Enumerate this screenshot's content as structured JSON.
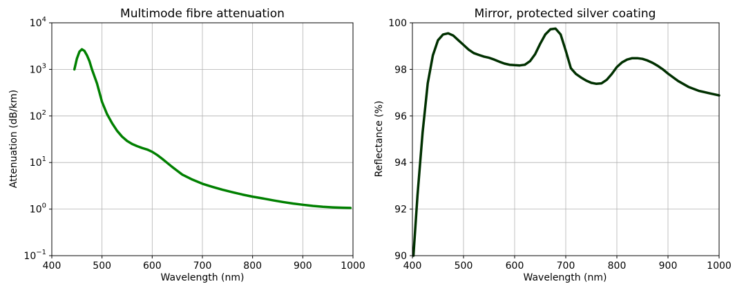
{
  "chart_data": [
    {
      "type": "line",
      "title": "Multimode fibre attenuation",
      "xlabel": "Wavelength (nm)",
      "ylabel": "Attenuation (dB/km)",
      "yscale": "log",
      "xlim": [
        400,
        1000
      ],
      "ylim": [
        0.1,
        10000
      ],
      "xticks": [
        "400",
        "500",
        "600",
        "700",
        "800",
        "900",
        "1000"
      ],
      "yticks": [
        {
          "base": "10",
          "exp": "−1",
          "value": 0.1
        },
        {
          "base": "10",
          "exp": "0",
          "value": 1
        },
        {
          "base": "10",
          "exp": "1",
          "value": 10
        },
        {
          "base": "10",
          "exp": "2",
          "value": 100
        },
        {
          "base": "10",
          "exp": "3",
          "value": 1000
        },
        {
          "base": "10",
          "exp": "4",
          "value": 10000
        }
      ],
      "grid": true,
      "series": [
        {
          "color": "#008000",
          "x": [
            445,
            450,
            455,
            460,
            465,
            470,
            475,
            480,
            490,
            500,
            510,
            520,
            530,
            540,
            550,
            560,
            570,
            580,
            590,
            600,
            610,
            620,
            640,
            660,
            680,
            700,
            720,
            740,
            760,
            780,
            800,
            820,
            840,
            860,
            880,
            900,
            920,
            940,
            960,
            980,
            995
          ],
          "y": [
            1000,
            1700,
            2400,
            2700,
            2500,
            2000,
            1500,
            1000,
            500,
            200,
            110,
            70,
            48,
            36,
            29,
            25,
            22.5,
            20.5,
            19,
            17,
            14.5,
            12,
            8,
            5.5,
            4.3,
            3.5,
            3.0,
            2.6,
            2.3,
            2.05,
            1.85,
            1.7,
            1.55,
            1.42,
            1.32,
            1.24,
            1.17,
            1.12,
            1.09,
            1.07,
            1.06
          ]
        }
      ]
    },
    {
      "type": "line",
      "title": "Mirror, protected silver coating",
      "xlabel": "Wavelength (nm)",
      "ylabel": "Reflectance (%)",
      "xlim": [
        400,
        1000
      ],
      "ylim": [
        90,
        100
      ],
      "xticks": [
        "400",
        "500",
        "600",
        "700",
        "800",
        "900",
        "1000"
      ],
      "yticks": [
        "90",
        "92",
        "94",
        "96",
        "98",
        "100"
      ],
      "grid": true,
      "series": [
        {
          "color": "#003000",
          "x": [
            402,
            410,
            420,
            430,
            440,
            450,
            460,
            470,
            480,
            490,
            500,
            510,
            520,
            530,
            540,
            550,
            560,
            570,
            580,
            590,
            600,
            610,
            620,
            630,
            640,
            650,
            660,
            670,
            680,
            690,
            700,
            710,
            720,
            730,
            740,
            750,
            760,
            770,
            780,
            790,
            800,
            810,
            820,
            830,
            840,
            850,
            860,
            870,
            880,
            890,
            900,
            920,
            940,
            960,
            980,
            1000
          ],
          "y": [
            90.0,
            92.6,
            95.3,
            97.4,
            98.6,
            99.25,
            99.5,
            99.55,
            99.45,
            99.25,
            99.05,
            98.85,
            98.7,
            98.62,
            98.55,
            98.5,
            98.42,
            98.33,
            98.25,
            98.2,
            98.18,
            98.17,
            98.2,
            98.35,
            98.65,
            99.1,
            99.5,
            99.72,
            99.75,
            99.5,
            98.8,
            98.05,
            97.8,
            97.65,
            97.52,
            97.42,
            97.38,
            97.4,
            97.55,
            97.8,
            98.1,
            98.3,
            98.42,
            98.48,
            98.48,
            98.45,
            98.38,
            98.28,
            98.15,
            98.0,
            97.82,
            97.5,
            97.25,
            97.08,
            96.98,
            96.88
          ]
        }
      ]
    }
  ]
}
